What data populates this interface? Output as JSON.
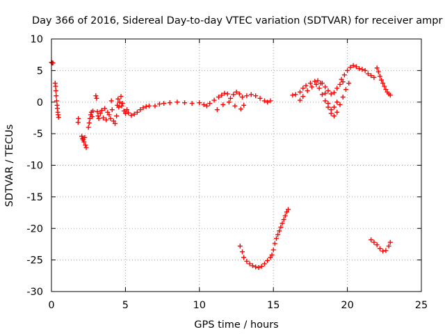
{
  "chart_data": {
    "type": "scatter",
    "title": "Day 366 of 2016, Sidereal Day-to-day VTEC variation (SDTVAR) for receiver ampr",
    "xlabel": "GPS time / hours",
    "ylabel": "SDTVAR / TECUs",
    "xlim": [
      0,
      25
    ],
    "ylim": [
      -30,
      10
    ],
    "xticks": [
      0,
      5,
      10,
      15,
      20,
      25
    ],
    "yticks": [
      -30,
      -25,
      -20,
      -15,
      -10,
      -5,
      0,
      5,
      10
    ],
    "grid": true,
    "marker": "plus",
    "color": "#ff0000",
    "series": [
      {
        "points": [
          [
            0.0,
            6.3
          ],
          [
            0.05,
            6.2
          ],
          [
            0.1,
            6.2
          ],
          [
            0.25,
            3.0
          ],
          [
            0.28,
            2.5
          ],
          [
            0.3,
            1.8
          ],
          [
            0.32,
            1.0
          ],
          [
            0.35,
            0.2
          ],
          [
            0.38,
            -0.5
          ],
          [
            0.4,
            -1.0
          ],
          [
            0.43,
            -1.6
          ],
          [
            0.45,
            -2.0
          ],
          [
            0.48,
            -2.4
          ],
          [
            1.8,
            -3.2
          ],
          [
            1.82,
            -2.6
          ],
          [
            2.05,
            -5.4
          ],
          [
            2.1,
            -5.8
          ],
          [
            2.15,
            -6.0
          ],
          [
            2.2,
            -6.3
          ],
          [
            2.25,
            -5.6
          ],
          [
            2.3,
            -6.8
          ],
          [
            2.35,
            -7.2
          ],
          [
            2.5,
            -4.0
          ],
          [
            2.55,
            -3.3
          ],
          [
            2.6,
            -2.6
          ],
          [
            2.65,
            -2.0
          ],
          [
            2.7,
            -1.6
          ],
          [
            2.75,
            -2.3
          ],
          [
            2.8,
            -1.4
          ],
          [
            3.0,
            1.0
          ],
          [
            3.05,
            0.6
          ],
          [
            3.1,
            -1.5
          ],
          [
            3.15,
            -2.2
          ],
          [
            3.2,
            -2.6
          ],
          [
            3.3,
            -1.8
          ],
          [
            3.4,
            -1.3
          ],
          [
            3.5,
            -2.5
          ],
          [
            3.6,
            -1.0
          ],
          [
            3.7,
            -2.8
          ],
          [
            3.8,
            -1.6
          ],
          [
            3.9,
            -2.0
          ],
          [
            4.0,
            -2.6
          ],
          [
            4.05,
            0.2
          ],
          [
            4.1,
            -1.2
          ],
          [
            4.2,
            -3.0
          ],
          [
            4.3,
            -3.4
          ],
          [
            4.4,
            -2.2
          ],
          [
            4.45,
            -0.5
          ],
          [
            4.5,
            0.5
          ],
          [
            4.55,
            -0.8
          ],
          [
            4.6,
            0.0
          ],
          [
            4.7,
            0.9
          ],
          [
            4.75,
            -0.6
          ],
          [
            4.8,
            -0.2
          ],
          [
            4.9,
            -1.4
          ],
          [
            5.0,
            -1.8
          ],
          [
            5.1,
            -1.2
          ],
          [
            5.2,
            -1.7
          ],
          [
            5.4,
            -2.1
          ],
          [
            5.6,
            -1.9
          ],
          [
            5.8,
            -1.6
          ],
          [
            6.0,
            -1.2
          ],
          [
            6.2,
            -0.9
          ],
          [
            6.4,
            -0.7
          ],
          [
            6.6,
            -0.6
          ],
          [
            7.0,
            -0.6
          ],
          [
            7.3,
            -0.3
          ],
          [
            7.6,
            -0.2
          ],
          [
            8.0,
            -0.1
          ],
          [
            8.5,
            0.0
          ],
          [
            9.0,
            -0.1
          ],
          [
            9.5,
            -0.2
          ],
          [
            10.0,
            -0.1
          ],
          [
            10.3,
            -0.4
          ],
          [
            10.5,
            -0.6
          ],
          [
            10.7,
            -0.2
          ],
          [
            11.0,
            0.3
          ],
          [
            11.3,
            0.8
          ],
          [
            11.5,
            1.1
          ],
          [
            11.7,
            1.4
          ],
          [
            11.9,
            1.3
          ],
          [
            12.1,
            0.6
          ],
          [
            12.3,
            1.2
          ],
          [
            12.5,
            1.6
          ],
          [
            12.7,
            1.3
          ],
          [
            12.9,
            0.8
          ],
          [
            13.2,
            1.0
          ],
          [
            13.5,
            1.2
          ],
          [
            13.8,
            1.0
          ],
          [
            14.1,
            0.6
          ],
          [
            14.4,
            0.2
          ],
          [
            14.6,
            0.0
          ],
          [
            14.8,
            0.2
          ],
          [
            11.2,
            -1.2
          ],
          [
            11.6,
            -0.4
          ],
          [
            12.0,
            0.0
          ],
          [
            12.4,
            -0.6
          ],
          [
            12.8,
            -1.1
          ],
          [
            13.0,
            -0.5
          ],
          [
            16.3,
            1.1
          ],
          [
            16.5,
            1.2
          ],
          [
            16.8,
            1.6
          ],
          [
            17.0,
            2.2
          ],
          [
            17.2,
            2.6
          ],
          [
            17.5,
            3.0
          ],
          [
            17.8,
            3.3
          ],
          [
            18.0,
            3.4
          ],
          [
            18.2,
            3.0
          ],
          [
            18.5,
            2.4
          ],
          [
            18.7,
            1.8
          ],
          [
            18.9,
            1.3
          ],
          [
            19.1,
            1.5
          ],
          [
            19.3,
            2.2
          ],
          [
            19.5,
            2.8
          ],
          [
            19.7,
            3.2
          ],
          [
            16.8,
            0.3
          ],
          [
            17.0,
            0.9
          ],
          [
            17.3,
            1.8
          ],
          [
            17.6,
            2.4
          ],
          [
            17.9,
            2.8
          ],
          [
            18.1,
            2.2
          ],
          [
            18.3,
            1.2
          ],
          [
            18.5,
            0.2
          ],
          [
            18.7,
            -0.8
          ],
          [
            18.9,
            -1.8
          ],
          [
            19.1,
            -2.2
          ],
          [
            19.3,
            -1.6
          ],
          [
            19.5,
            -0.4
          ],
          [
            19.7,
            0.8
          ],
          [
            19.9,
            2.0
          ],
          [
            20.1,
            3.0
          ],
          [
            18.3,
            3.0
          ],
          [
            18.5,
            1.4
          ],
          [
            18.7,
            -0.2
          ],
          [
            18.9,
            -1.2
          ],
          [
            19.1,
            -0.8
          ],
          [
            19.3,
            0.0
          ],
          [
            19.6,
            3.6
          ],
          [
            19.8,
            4.3
          ],
          [
            20.0,
            5.0
          ],
          [
            20.2,
            5.5
          ],
          [
            20.4,
            5.8
          ],
          [
            20.6,
            5.6
          ],
          [
            20.8,
            5.3
          ],
          [
            21.0,
            5.2
          ],
          [
            21.2,
            5.0
          ],
          [
            21.4,
            4.5
          ],
          [
            21.6,
            4.2
          ],
          [
            21.8,
            3.9
          ],
          [
            22.0,
            5.4
          ],
          [
            22.1,
            4.8
          ],
          [
            22.2,
            4.1
          ],
          [
            22.3,
            3.5
          ],
          [
            22.4,
            3.0
          ],
          [
            22.5,
            2.5
          ],
          [
            22.6,
            2.0
          ],
          [
            22.7,
            1.6
          ],
          [
            22.8,
            1.3
          ],
          [
            22.9,
            1.1
          ],
          [
            12.75,
            -22.8
          ],
          [
            12.9,
            -23.7
          ],
          [
            13.0,
            -24.6
          ],
          [
            13.2,
            -25.2
          ],
          [
            13.4,
            -25.6
          ],
          [
            13.6,
            -25.9
          ],
          [
            13.8,
            -26.1
          ],
          [
            14.0,
            -26.2
          ],
          [
            14.2,
            -26.0
          ],
          [
            14.4,
            -25.6
          ],
          [
            14.6,
            -25.1
          ],
          [
            14.8,
            -24.6
          ],
          [
            14.9,
            -24.2
          ],
          [
            15.0,
            -23.4
          ],
          [
            15.1,
            -22.4
          ],
          [
            15.2,
            -21.6
          ],
          [
            15.3,
            -21.0
          ],
          [
            15.4,
            -20.4
          ],
          [
            15.5,
            -19.8
          ],
          [
            15.6,
            -19.2
          ],
          [
            15.7,
            -18.6
          ],
          [
            15.8,
            -18.0
          ],
          [
            15.9,
            -17.4
          ],
          [
            16.0,
            -17.0
          ],
          [
            21.6,
            -21.8
          ],
          [
            21.8,
            -22.2
          ],
          [
            22.0,
            -22.6
          ],
          [
            22.2,
            -23.2
          ],
          [
            22.4,
            -23.6
          ],
          [
            22.6,
            -23.5
          ],
          [
            22.8,
            -22.8
          ],
          [
            22.9,
            -22.2
          ]
        ]
      }
    ]
  }
}
